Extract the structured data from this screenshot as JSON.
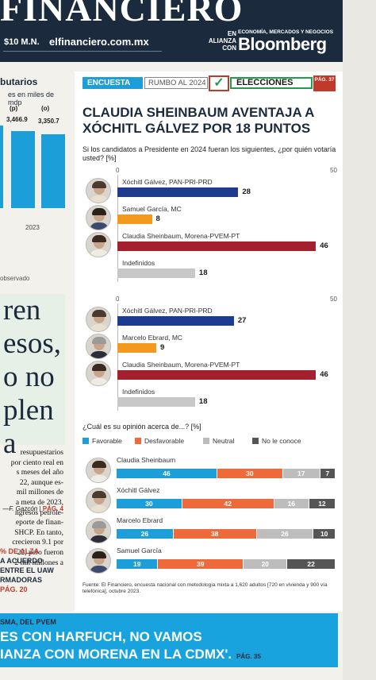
{
  "masthead": {
    "logo_text": "FINANCIERO",
    "price": "$10 M.N.",
    "url": "elfinanciero.com.mx",
    "alliance": "EN ALIANZA CON",
    "alliance_tagline": "ECONOMÍA, MERCADOS Y NEGOCIOS",
    "partner": "Bloomberg"
  },
  "left_column": {
    "title": "butarios",
    "subtitle": "es en miles de mdp",
    "bar_labels": [
      "(p)",
      "(o)"
    ],
    "bar_values_text": [
      "3,466.9",
      "3,350.7"
    ],
    "bar_values": [
      3466.9,
      3350.7
    ],
    "year": "2023",
    "note": "observado",
    "quote_lines": [
      "ren",
      "esos,",
      "o no",
      "plen",
      "a"
    ],
    "body_lines": [
      "resupuestarios",
      "por ciento real en",
      "s meses del año",
      "22, aunque es-",
      "mil millones de",
      "a meta de 2023,",
      "ngresos petrole-",
      "eporte de finan-",
      "SHCP. En tanto,",
      "crecieron 9.1 por",
      "22, pero fueron",
      "2 mil millones a"
    ],
    "signature": "—F. Gazcón",
    "signature_page": "PÁG. 4",
    "alza_lines": [
      "% DE ALZA",
      "A ACUERDO",
      "ENTRE EL UAW",
      "RMADORAS",
      "PÁG. 20"
    ]
  },
  "tags": {
    "encuesta": "ENCUESTA",
    "rumbo": "RUMBO AL 2024",
    "check": "✓",
    "elecciones": "ELECCIONES",
    "pag": "PÁG. 37"
  },
  "headline": "CLAUDIA SHEINBAUM AVENTAJA A XÓCHITL GÁLVEZ POR 18 PUNTOS",
  "question": "Si los candidatos a Presidente en 2024 fueran los siguientes, ¿por quién votaría usted? [%]",
  "colors": {
    "pan": "#1d3c8f",
    "mc": "#f39a1e",
    "morena": "#a3202e",
    "indefinido": "#c8c8c8",
    "favorable": "#1c9fd8",
    "desfavorable": "#ee6a3a",
    "neutral": "#bdbdbd",
    "noconoce": "#555555"
  },
  "chart_data": [
    {
      "type": "bar",
      "axis": {
        "min_label": "0",
        "max_label": "50"
      },
      "xlim": [
        0,
        50
      ],
      "categories": [
        "Xóchitl Gálvez, PAN-PRI-PRD",
        "Samuel García, MC",
        "Claudia Sheinbaum, Morena-PVEM-PT",
        "Indefinidos"
      ],
      "values": [
        28,
        8,
        46,
        18
      ],
      "value_labels": [
        "28",
        "8",
        "46",
        "18"
      ],
      "color_keys": [
        "pan",
        "mc",
        "morena",
        "indefinido"
      ],
      "avatars": [
        "xochitl",
        "samuel",
        "claudia",
        "none"
      ]
    },
    {
      "type": "bar",
      "axis": {
        "min_label": "0",
        "max_label": "50"
      },
      "xlim": [
        0,
        50
      ],
      "categories": [
        "Xóchitl Gálvez, PAN-PRI-PRD",
        "Marcelo Ebrard, MC",
        "Claudia Sheinbaum, Morena-PVEM-PT",
        "Indefinidos"
      ],
      "values": [
        27,
        9,
        46,
        18
      ],
      "value_labels": [
        "27",
        "9",
        "46",
        "18"
      ],
      "color_keys": [
        "pan",
        "mc",
        "morena",
        "indefinido"
      ],
      "avatars": [
        "xochitl",
        "marcelo",
        "claudia",
        "none"
      ]
    },
    {
      "type": "bar",
      "stacked": true,
      "question": "¿Cuál es su opinión acerca de...? [%]",
      "legend": [
        "Favorable",
        "Desfavorable",
        "Neutral",
        "No le conoce"
      ],
      "color_keys": [
        "favorable",
        "desfavorable",
        "neutral",
        "noconoce"
      ],
      "categories": [
        "Claudia Sheinbaum",
        "Xóchitl Gálvez",
        "Marcelo Ebrard",
        "Samuel García"
      ],
      "series": [
        {
          "name": "Favorable",
          "values": [
            46,
            30,
            26,
            19
          ]
        },
        {
          "name": "Desfavorable",
          "values": [
            30,
            42,
            38,
            39
          ]
        },
        {
          "name": "Neutral",
          "values": [
            17,
            16,
            26,
            20
          ]
        },
        {
          "name": "No le conoce",
          "values": [
            7,
            12,
            10,
            22
          ]
        }
      ]
    }
  ],
  "source": "Fuente: El Financiero, encuesta nacional con metodología mixta a 1,620 adultos [720 en vivienda y 900 vía telefónica], octubre 2023.",
  "banner": {
    "subtitle": "SMA, DEL PVEM",
    "line1": "ES CON HARFUCH, NO VAMOS",
    "line2": "IANZA CON MORENA EN LA CDMX'.",
    "page": "PÁG. 35"
  }
}
